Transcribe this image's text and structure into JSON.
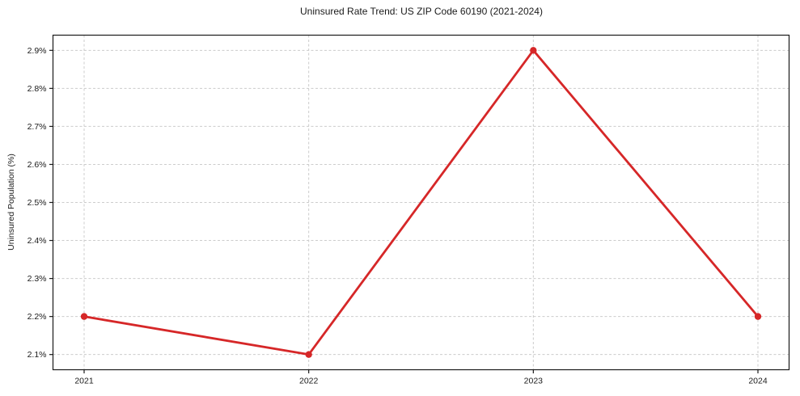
{
  "title": "Uninsured Rate Trend: US ZIP Code 60190 (2021-2024)",
  "chart_data": {
    "type": "line",
    "title": "Uninsured Rate Trend: US ZIP Code 60190 (2021-2024)",
    "categories": [
      "2021",
      "2022",
      "2023",
      "2024"
    ],
    "values": [
      2.2,
      2.1,
      2.9,
      2.2
    ],
    "xlabel": "",
    "ylabel": "Uninsured Population (%)",
    "ylim": [
      2.06,
      2.94
    ],
    "y_tick_values": [
      2.1,
      2.2,
      2.3,
      2.4,
      2.5,
      2.6,
      2.7,
      2.8,
      2.9
    ],
    "y_tick_labels": [
      "2.1%",
      "2.2%",
      "2.3%",
      "2.4%",
      "2.5%",
      "2.6%",
      "2.7%",
      "2.8%",
      "2.9%"
    ],
    "grid": true,
    "grid_style": "dashed",
    "legend": "none",
    "line_color": "#d62728",
    "marker_color": "#d62728",
    "grid_color": "#cccccc",
    "spine_color": "#1a1a1a",
    "background_color": "#ffffff"
  }
}
